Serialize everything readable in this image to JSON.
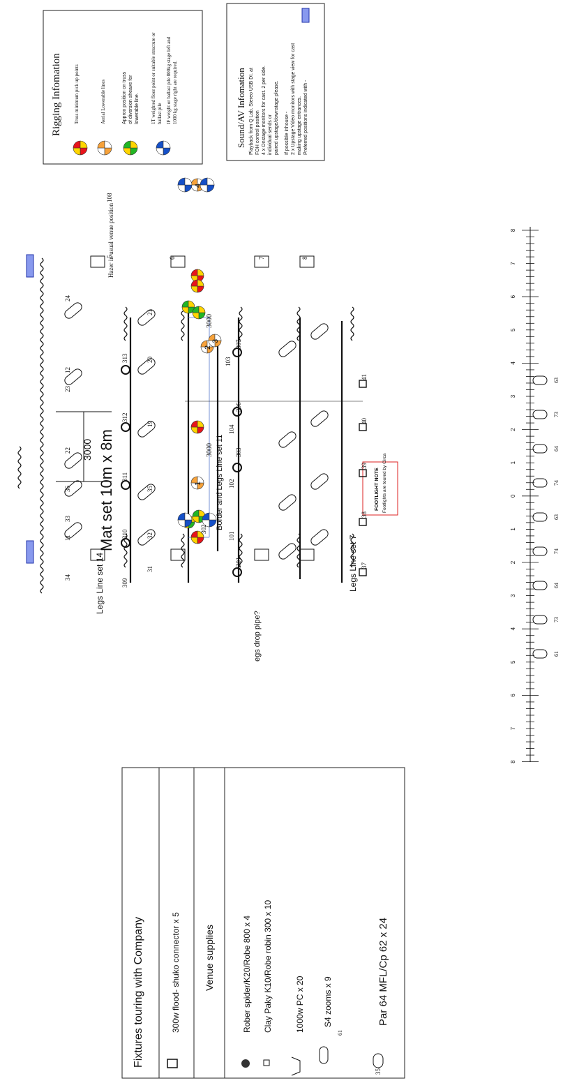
{
  "rigging": {
    "title": "Rigging Infomation",
    "items": [
      "Truss minimum pick up points",
      "Aerial Lowerable lines",
      "Approx position on truss",
      "of diversion sheave for",
      "lowerable line.",
      "1T weighted floor point or suitable structure or",
      "ballast pile",
      "IF weight or ballast pile 800kg stage left and",
      "1000 kg stage right are required."
    ]
  },
  "sound": {
    "title": "Sound/AV Infomation",
    "lines": [
      "Playback from Q Lab. Stereo USB DI. at",
      "FOH control position",
      "4 x Onstage monitors for cast. 2 per side.",
      "individual sends or",
      "paired upstage/downstage please.",
      "If possible inhouse -",
      "2 x Upstage Video monitors with stage view for cast",
      "making upstage entrances.",
      "Preferred positions indicated with -"
    ]
  },
  "key": {
    "title": "Fixtures touring with Company",
    "touring": [
      "300w flood- shuko connector x 5"
    ],
    "venue_title": "Venue supplies",
    "venue": [
      "Rober spider/K20/Robe 800 x 4",
      "Clay Paky K10/Robe robin 300 x 10",
      "1000w PC x 20",
      "S4 zooms x 9",
      "Par 64 MFL/Cp 62 x 24"
    ],
    "marks": [
      "35",
      "61"
    ]
  },
  "plot": {
    "labels": [
      "Mat set 10m x 8m",
      "Legs Line set 14",
      "Border and Legs Line set 11",
      "egs drop pipe?",
      "Legs Line set 7",
      "Hazer in usual venue position",
      "3000",
      "3000",
      "3000"
    ],
    "footlight": {
      "title": "FOOTLIGHT NOTE",
      "text": "Footlights are toured by Circa"
    },
    "truss_points": [
      "1",
      "2",
      "3",
      "4"
    ],
    "channels": [
      "24",
      "12",
      "23",
      "22",
      "36",
      "33",
      "11",
      "34",
      "313",
      "312",
      "311",
      "310",
      "309",
      "21",
      "20",
      "19",
      "35",
      "32",
      "31",
      "307",
      "103",
      "306",
      "104",
      "303",
      "102",
      "302",
      "101",
      "301",
      "41",
      "40",
      "39",
      "38",
      "37",
      "5",
      "6",
      "7",
      "8",
      "108"
    ]
  },
  "scale": {
    "ticks": [
      "8",
      "7",
      "6",
      "5",
      "4",
      "3",
      "2",
      "1",
      "0",
      "1",
      "2",
      "3",
      "4",
      "5",
      "6",
      "7",
      "8"
    ],
    "channels": [
      "63",
      "73",
      "64",
      "74",
      "63",
      "74",
      "64",
      "73",
      "61"
    ]
  }
}
